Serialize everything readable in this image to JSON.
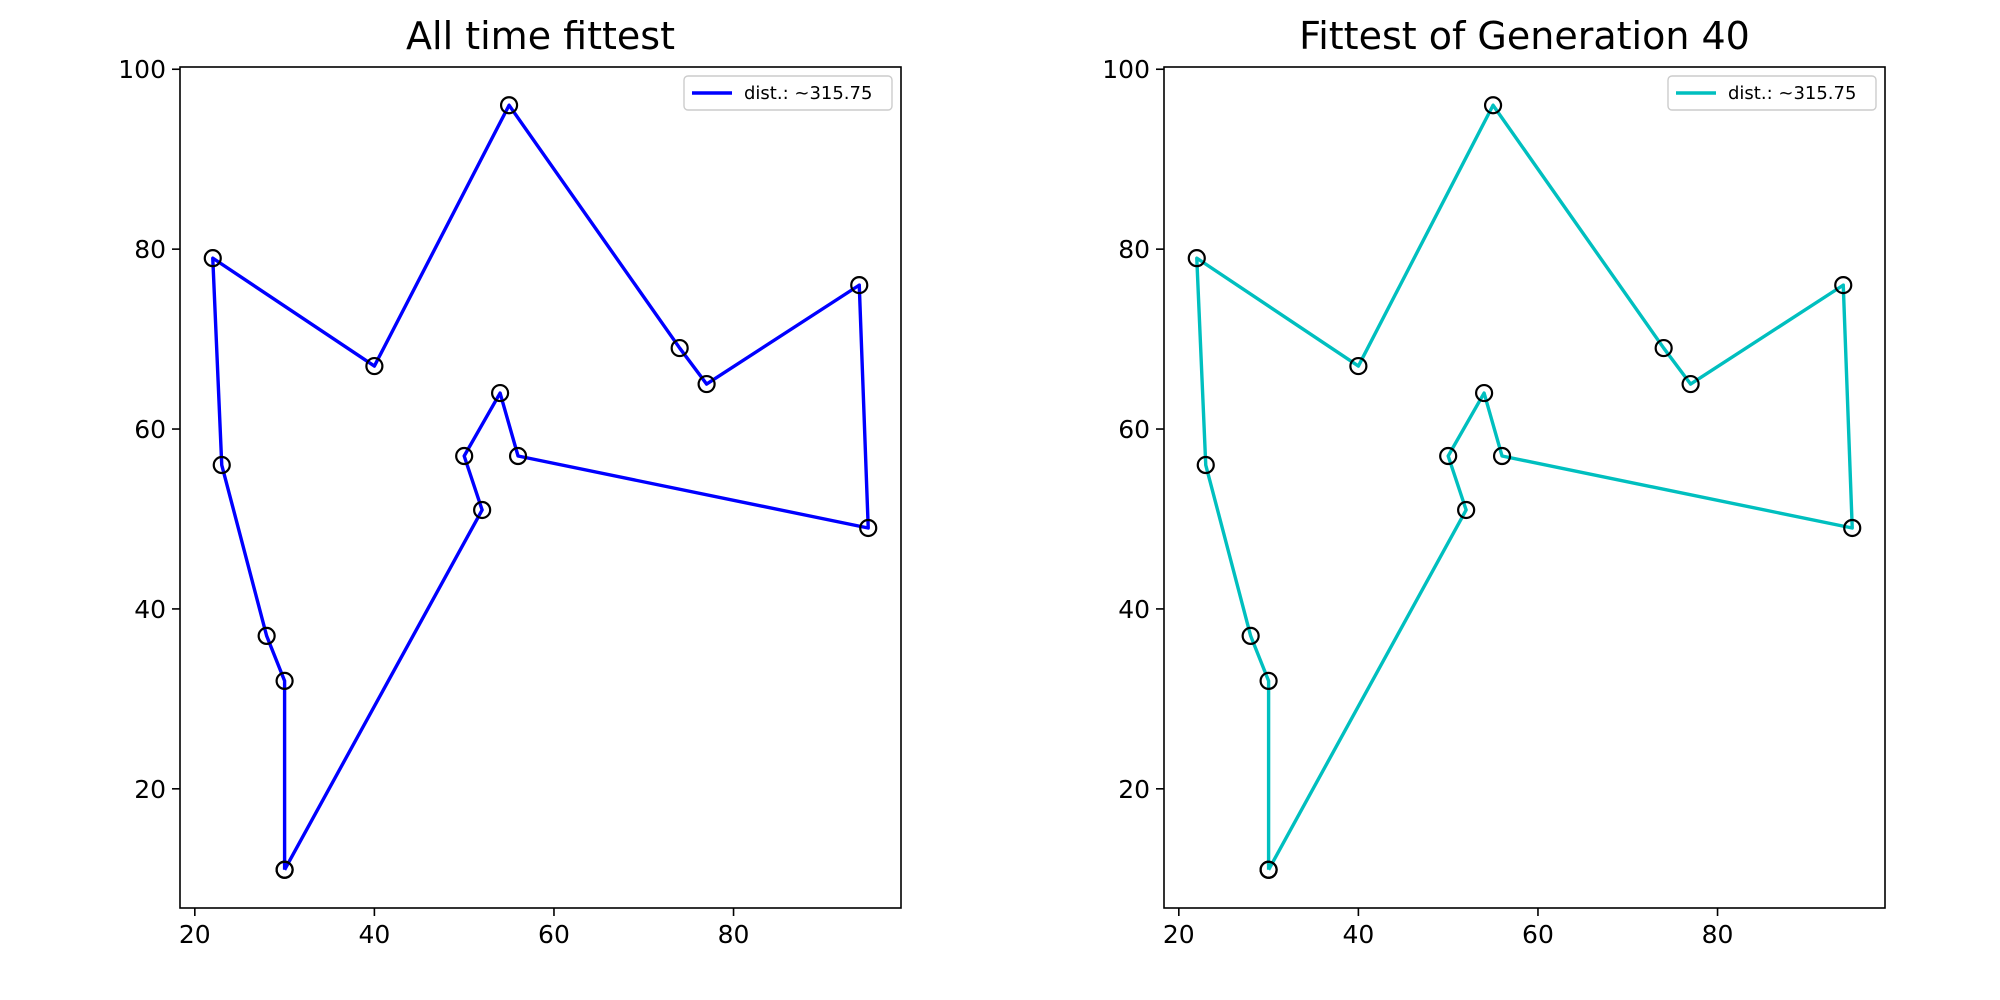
{
  "chart_data": [
    {
      "type": "line",
      "title": "All time fittest",
      "xlabel": "",
      "ylabel": "",
      "xlim": [
        18.35,
        98.65
      ],
      "ylim": [
        6.75,
        100.25
      ],
      "x_ticks": [
        20,
        40,
        60,
        80
      ],
      "y_ticks": [
        20,
        40,
        60,
        80,
        100
      ],
      "legend_position": "upper right",
      "grid": false,
      "series": [
        {
          "name": "dist.: ~315.75",
          "color": "#0000ff",
          "marker": "open circle",
          "x": [
            30,
            52,
            50,
            54,
            56,
            95,
            94,
            77,
            74,
            55,
            40,
            22,
            23,
            28,
            30,
            30
          ],
          "y": [
            11,
            51,
            57,
            64,
            57,
            49,
            76,
            65,
            69,
            96,
            67,
            79,
            56,
            37,
            32,
            11
          ]
        }
      ]
    },
    {
      "type": "line",
      "title": "Fittest of Generation 40",
      "xlabel": "",
      "ylabel": "",
      "xlim": [
        18.35,
        98.65
      ],
      "ylim": [
        6.75,
        100.25
      ],
      "x_ticks": [
        20,
        40,
        60,
        80
      ],
      "y_ticks": [
        20,
        40,
        60,
        80,
        100
      ],
      "legend_position": "upper right",
      "grid": false,
      "series": [
        {
          "name": "dist.: ~315.75",
          "color": "#00bfbf",
          "marker": "open circle",
          "x": [
            30,
            52,
            50,
            54,
            56,
            95,
            94,
            77,
            74,
            55,
            40,
            22,
            23,
            28,
            30,
            30
          ],
          "y": [
            11,
            51,
            57,
            64,
            57,
            49,
            76,
            65,
            69,
            96,
            67,
            79,
            56,
            37,
            32,
            11
          ]
        }
      ]
    }
  ]
}
